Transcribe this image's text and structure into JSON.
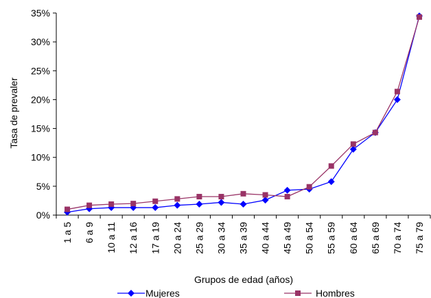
{
  "chart_data": {
    "type": "line",
    "xlabel": "Grupos de edad (años)",
    "ylabel": "Tasa de prevaler",
    "categories": [
      "1 a 5",
      "6 a 9",
      "10 a 11",
      "12 a 16",
      "17 a 19",
      "20 a 24",
      "25 a 29",
      "30 a 34",
      "35 a 39",
      "40 a 44",
      "45 a 49",
      "50 a 54",
      "55 a 59",
      "60 a 64",
      "65 a 69",
      "70 a 74",
      "75 a 79"
    ],
    "ylim": [
      0,
      35
    ],
    "yticks": [
      "0%",
      "5%",
      "10%",
      "15%",
      "20%",
      "25%",
      "30%",
      "35%"
    ],
    "y_tick_values": [
      0,
      5,
      10,
      15,
      20,
      25,
      30,
      35
    ],
    "grid": false,
    "legend_position": "bottom",
    "series": [
      {
        "name": "Mujeres",
        "color": "#0000FF",
        "marker": "diamond",
        "values": [
          0.5,
          1.1,
          1.3,
          1.3,
          1.3,
          1.7,
          1.9,
          2.2,
          1.9,
          2.6,
          4.3,
          4.5,
          5.8,
          11.4,
          14.3,
          20.0,
          34.5
        ]
      },
      {
        "name": "Hombres",
        "color": "#993366",
        "marker": "square",
        "values": [
          1.0,
          1.7,
          1.9,
          2.0,
          2.4,
          2.8,
          3.2,
          3.2,
          3.7,
          3.5,
          3.2,
          4.9,
          8.5,
          12.3,
          14.3,
          21.4,
          34.3
        ]
      }
    ]
  }
}
